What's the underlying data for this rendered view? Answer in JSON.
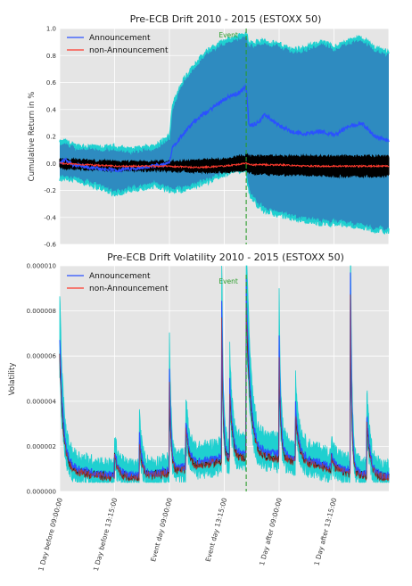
{
  "colors": {
    "announcement": "#2b50ff",
    "non_announcement": "#ff3b2e",
    "band": "#2e8bc0",
    "band_edge": "#1fd0d0",
    "non_band": "#000000",
    "event_line": "#2a9d2a",
    "plot_bg": "#e5e5e5",
    "grid": "#ffffff"
  },
  "chart_data": [
    {
      "type": "line",
      "title": "Pre-ECB Drift 2010 - 2015 (ESTOXX 50)",
      "xlabel": "",
      "ylabel": "Cumulative Return in %",
      "ylim": [
        -0.6,
        1.0
      ],
      "yticks": [
        "-0.6",
        "-0.4",
        "-0.2",
        "0.0",
        "0.2",
        "0.4",
        "0.6",
        "0.8",
        "1.0"
      ],
      "ytick_values": [
        -0.6,
        -0.4,
        -0.2,
        0.0,
        0.2,
        0.4,
        0.6,
        0.8,
        1.0
      ],
      "grid": true,
      "legend": "top-left",
      "event_label": "Event",
      "event_x": 3.4,
      "x_range": [
        0,
        6
      ],
      "series": [
        {
          "name": "Announcement",
          "x": [
            0,
            0.1,
            0.25,
            0.5,
            0.75,
            1.0,
            1.25,
            1.5,
            1.75,
            2.0,
            2.05,
            2.25,
            2.5,
            2.75,
            3.0,
            3.25,
            3.4,
            3.45,
            3.6,
            3.75,
            4.0,
            4.25,
            4.5,
            4.75,
            5.0,
            5.25,
            5.5,
            5.75,
            6.0
          ],
          "values": [
            0.0,
            0.03,
            -0.01,
            -0.03,
            -0.04,
            -0.05,
            -0.04,
            -0.03,
            -0.02,
            0.0,
            0.12,
            0.22,
            0.33,
            0.4,
            0.48,
            0.52,
            0.57,
            0.28,
            0.3,
            0.36,
            0.28,
            0.23,
            0.22,
            0.24,
            0.21,
            0.27,
            0.3,
            0.2,
            0.17
          ],
          "upper": [
            0.15,
            0.16,
            0.13,
            0.12,
            0.11,
            0.12,
            0.1,
            0.11,
            0.12,
            0.2,
            0.42,
            0.62,
            0.75,
            0.85,
            0.9,
            0.94,
            0.96,
            0.88,
            0.9,
            0.9,
            0.88,
            0.84,
            0.85,
            0.9,
            0.86,
            0.9,
            0.93,
            0.85,
            0.82
          ],
          "lower": [
            -0.12,
            -0.1,
            -0.12,
            -0.14,
            -0.18,
            -0.22,
            -0.2,
            -0.18,
            -0.16,
            -0.19,
            -0.2,
            -0.19,
            -0.16,
            -0.12,
            -0.08,
            -0.05,
            -0.04,
            -0.22,
            -0.3,
            -0.35,
            -0.38,
            -0.4,
            -0.42,
            -0.44,
            -0.44,
            -0.45,
            -0.47,
            -0.49,
            -0.5
          ]
        },
        {
          "name": "non-Announcement",
          "x": [
            0,
            0.5,
            1.0,
            1.5,
            2.0,
            2.5,
            3.0,
            3.4,
            3.5,
            4.0,
            4.5,
            5.0,
            5.5,
            6.0
          ],
          "values": [
            0.0,
            -0.01,
            -0.02,
            -0.02,
            -0.02,
            -0.03,
            -0.02,
            0.0,
            -0.01,
            -0.01,
            -0.02,
            -0.02,
            -0.02,
            -0.02
          ],
          "upper": [
            0.03,
            0.02,
            0.01,
            0.01,
            0.01,
            0.02,
            0.03,
            0.06,
            0.05,
            0.05,
            0.05,
            0.05,
            0.05,
            0.05
          ],
          "lower": [
            -0.03,
            -0.04,
            -0.05,
            -0.05,
            -0.05,
            -0.06,
            -0.06,
            -0.05,
            -0.07,
            -0.08,
            -0.08,
            -0.09,
            -0.09,
            -0.09
          ]
        }
      ]
    },
    {
      "type": "line",
      "title": "Pre-ECB Drift Volatility 2010 - 2015 (ESTOXX 50)",
      "xlabel": "",
      "ylabel": "Volatility",
      "ylim": [
        0,
        1e-05
      ],
      "yticks": [
        "0.000000",
        "0.000002",
        "0.000004",
        "0.000006",
        "0.000008",
        "0.000010"
      ],
      "ytick_values": [
        0,
        2e-06,
        4e-06,
        6e-06,
        8e-06,
        1e-05
      ],
      "grid": true,
      "legend": "top-left",
      "event_label": "Event",
      "event_x": 3.4,
      "x_range": [
        0,
        6
      ],
      "xticks": [
        "1 Day before 09:00:00",
        "1 Day before 13:15:00",
        "Event day 09:00:00",
        "Event day 13:15:00",
        "1 Day after 09:00:00",
        "1 Day after 13:15:00"
      ],
      "xtick_values": [
        0,
        1,
        2,
        3,
        4,
        5
      ],
      "baseline": 1.2e-06,
      "spikes": [
        {
          "x": 0.0,
          "value": 6.8e-06,
          "decay": 0.25
        },
        {
          "x": 1.0,
          "value": 2.2e-06,
          "decay": 0.3
        },
        {
          "x": 1.45,
          "value": 3.1e-06,
          "decay": 0.2
        },
        {
          "x": 2.0,
          "value": 5.8e-06,
          "decay": 0.12
        },
        {
          "x": 2.3,
          "value": 3.2e-06,
          "decay": 0.25
        },
        {
          "x": 2.95,
          "value": 9.3e-06,
          "decay": 0.1
        },
        {
          "x": 3.1,
          "value": 4.5e-06,
          "decay": 0.2
        },
        {
          "x": 3.4,
          "value": 8.8e-06,
          "decay": 0.3
        },
        {
          "x": 4.0,
          "value": 6.3e-06,
          "decay": 0.12
        },
        {
          "x": 4.3,
          "value": 3.5e-06,
          "decay": 0.25
        },
        {
          "x": 4.95,
          "value": 1.8e-06,
          "decay": 0.2
        },
        {
          "x": 5.3,
          "value": 1e-05,
          "decay": 0.1
        },
        {
          "x": 5.6,
          "value": 3.8e-06,
          "decay": 0.25
        }
      ],
      "series": [
        {
          "name": "Announcement"
        },
        {
          "name": "non-Announcement"
        }
      ]
    }
  ]
}
